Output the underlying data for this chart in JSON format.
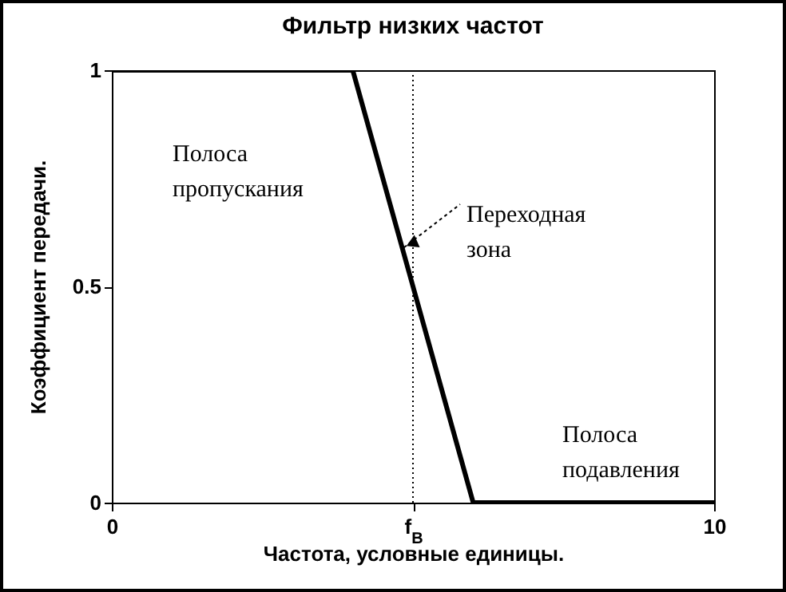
{
  "chart_data": {
    "type": "line",
    "title": "Фильтр низких частот",
    "xlabel": "Частота,  условные единицы.",
    "ylabel": "Коэффициент передачи.",
    "x": [
      0,
      4,
      6,
      10
    ],
    "series": [
      {
        "color": "#000000",
        "values": [
          1,
          1,
          0,
          0
        ]
      }
    ],
    "xlim": [
      0,
      10
    ],
    "ylim": [
      0,
      1
    ],
    "xticks": [
      0,
      {
        "value": 5,
        "label": "f$_{В}$"
      },
      10
    ],
    "yticks": [
      0,
      0.5,
      1
    ],
    "ref_lines": [
      {
        "axis": "x",
        "value": 5,
        "color": "#000000",
        "line_style": "dotted"
      }
    ],
    "annotations": [
      "Полоса\nпропускания",
      {
        "text": "Переходная\nзона",
        "x": 4.85,
        "y": 0.59
      },
      "Полоса\nподавления"
    ],
    "grid": false,
    "marker": "none",
    "line_style": "solid"
  }
}
